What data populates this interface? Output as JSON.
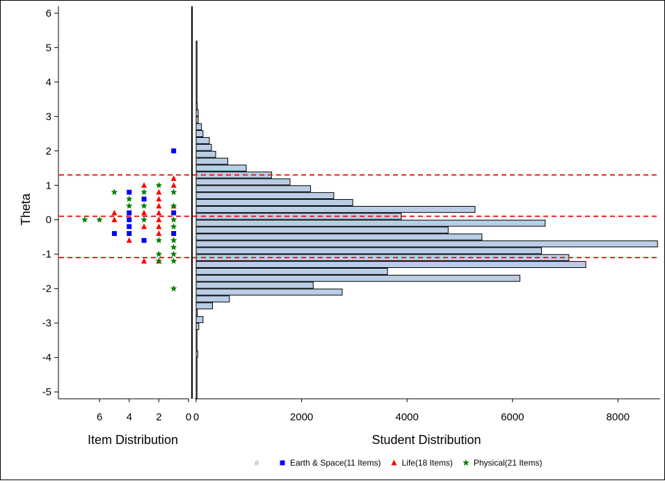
{
  "chart_data": {
    "type": "item-person map",
    "y_axis": {
      "label": "Theta",
      "range": [
        -5.2,
        6.2
      ],
      "ticks": [
        6,
        5,
        4,
        3,
        2,
        1,
        0,
        -1,
        -2,
        -3,
        -4,
        -5
      ],
      "tick_labels": [
        "6",
        "5",
        "4",
        "3",
        "2",
        "1",
        "0",
        "-1",
        "-2",
        "-3",
        "-4",
        "-5"
      ]
    },
    "cut_lines": [
      1.3,
      0.1,
      -1.1
    ],
    "cut_line_color": "#ee1c1c",
    "item_panel": {
      "xlabel": "Item Distribution",
      "x_range": [
        0,
        7.6
      ],
      "ticks": [
        6,
        4,
        2,
        0
      ],
      "tick_labels": [
        "6",
        "4",
        "2",
        "0"
      ],
      "series": [
        {
          "name": "Earth & Space(11 Items)",
          "marker": "square",
          "color": "#0000ff",
          "points": [
            [
              1,
              2.0
            ],
            [
              4,
              0.8
            ],
            [
              3,
              0.6
            ],
            [
              4,
              0.2
            ],
            [
              1,
              0.2
            ],
            [
              4,
              0.0
            ],
            [
              4,
              -0.2
            ],
            [
              5,
              -0.4
            ],
            [
              4,
              -0.4
            ],
            [
              1,
              -0.4
            ],
            [
              3,
              -0.6
            ]
          ]
        },
        {
          "name": "Life(18 Items)",
          "marker": "triangle",
          "color": "#ff0000",
          "points": [
            [
              1,
              1.2
            ],
            [
              3,
              1.0
            ],
            [
              1,
              1.0
            ],
            [
              2,
              0.8
            ],
            [
              2,
              0.6
            ],
            [
              2,
              0.4
            ],
            [
              1,
              0.4
            ],
            [
              5,
              0.2
            ],
            [
              3,
              0.2
            ],
            [
              2,
              0.2
            ],
            [
              5,
              0.0
            ],
            [
              2,
              0.0
            ],
            [
              3,
              -0.2
            ],
            [
              2,
              -0.2
            ],
            [
              2,
              -0.4
            ],
            [
              4,
              -0.6
            ],
            [
              3,
              -1.2
            ],
            [
              2,
              -1.2
            ]
          ]
        },
        {
          "name": "Physical(21 Items)",
          "marker": "star",
          "color": "#008000",
          "points": [
            [
              2,
              1.0
            ],
            [
              5,
              0.8
            ],
            [
              3,
              0.8
            ],
            [
              1,
              0.8
            ],
            [
              4,
              0.6
            ],
            [
              4,
              0.4
            ],
            [
              3,
              0.4
            ],
            [
              1,
              0.4
            ],
            [
              7,
              0.0
            ],
            [
              6,
              0.0
            ],
            [
              3,
              0.0
            ],
            [
              1,
              0.0
            ],
            [
              1,
              -0.2
            ],
            [
              2,
              -0.6
            ],
            [
              1,
              -0.6
            ],
            [
              1,
              -0.8
            ],
            [
              2,
              -1.0
            ],
            [
              1,
              -1.0
            ],
            [
              2,
              -1.2
            ],
            [
              1,
              -1.2
            ],
            [
              1,
              -2.0
            ]
          ]
        }
      ]
    },
    "student_panel": {
      "xlabel": "Student Distribution",
      "x_range": [
        0,
        8800
      ],
      "ticks": [
        0,
        2000,
        4000,
        6000,
        8000
      ],
      "tick_labels": [
        "0",
        "2000",
        "4000",
        "6000",
        "8000"
      ],
      "bar_fill": "#b9cde5",
      "bar_stroke": "#000000",
      "bin_width": 0.2,
      "bins": [
        {
          "theta": 5.1,
          "count": 10
        },
        {
          "theta": 4.9,
          "count": 10
        },
        {
          "theta": 4.7,
          "count": 10
        },
        {
          "theta": 4.5,
          "count": 10
        },
        {
          "theta": 4.3,
          "count": 10
        },
        {
          "theta": 4.1,
          "count": 10
        },
        {
          "theta": 3.9,
          "count": 10
        },
        {
          "theta": 3.7,
          "count": 10
        },
        {
          "theta": 3.5,
          "count": 10
        },
        {
          "theta": 3.3,
          "count": 20
        },
        {
          "theta": 3.1,
          "count": 40
        },
        {
          "theta": 2.9,
          "count": 40
        },
        {
          "theta": 2.7,
          "count": 100
        },
        {
          "theta": 2.5,
          "count": 130
        },
        {
          "theta": 2.3,
          "count": 250
        },
        {
          "theta": 2.1,
          "count": 290
        },
        {
          "theta": 1.9,
          "count": 370
        },
        {
          "theta": 1.7,
          "count": 600
        },
        {
          "theta": 1.5,
          "count": 950
        },
        {
          "theta": 1.3,
          "count": 1430
        },
        {
          "theta": 1.1,
          "count": 1780
        },
        {
          "theta": 0.9,
          "count": 2170
        },
        {
          "theta": 0.7,
          "count": 2610
        },
        {
          "theta": 0.5,
          "count": 2970
        },
        {
          "theta": 0.3,
          "count": 5290
        },
        {
          "theta": 0.1,
          "count": 3890
        },
        {
          "theta": -0.1,
          "count": 6620
        },
        {
          "theta": -0.3,
          "count": 4780
        },
        {
          "theta": -0.5,
          "count": 5420
        },
        {
          "theta": -0.7,
          "count": 8750
        },
        {
          "theta": -0.9,
          "count": 6550
        },
        {
          "theta": -1.1,
          "count": 7070
        },
        {
          "theta": -1.3,
          "count": 7390
        },
        {
          "theta": -1.5,
          "count": 3630
        },
        {
          "theta": -1.7,
          "count": 6140
        },
        {
          "theta": -1.9,
          "count": 2220
        },
        {
          "theta": -2.1,
          "count": 2770
        },
        {
          "theta": -2.3,
          "count": 630
        },
        {
          "theta": -2.5,
          "count": 310
        },
        {
          "theta": -2.7,
          "count": 20
        },
        {
          "theta": -2.9,
          "count": 130
        },
        {
          "theta": -3.1,
          "count": 50
        },
        {
          "theta": -3.3,
          "count": 10
        },
        {
          "theta": -3.5,
          "count": 10
        },
        {
          "theta": -3.7,
          "count": 10
        },
        {
          "theta": -3.9,
          "count": 30
        },
        {
          "theta": -4.1,
          "count": 10
        },
        {
          "theta": -4.3,
          "count": 10
        },
        {
          "theta": -4.5,
          "count": 10
        },
        {
          "theta": -4.7,
          "count": 10
        },
        {
          "theta": -4.9,
          "count": 10
        },
        {
          "theta": -5.1,
          "count": 10
        }
      ]
    },
    "legend": {
      "placement": "bottom",
      "entries": [
        {
          "symbol": "#",
          "label": "",
          "color": "#999999"
        },
        {
          "symbol": "square",
          "label": "Earth & Space(11 Items)",
          "color": "#0000ff"
        },
        {
          "symbol": "triangle",
          "label": "Life(18 Items)",
          "color": "#ff0000"
        },
        {
          "symbol": "star",
          "label": "Physical(21 Items)",
          "color": "#008000"
        }
      ]
    }
  }
}
